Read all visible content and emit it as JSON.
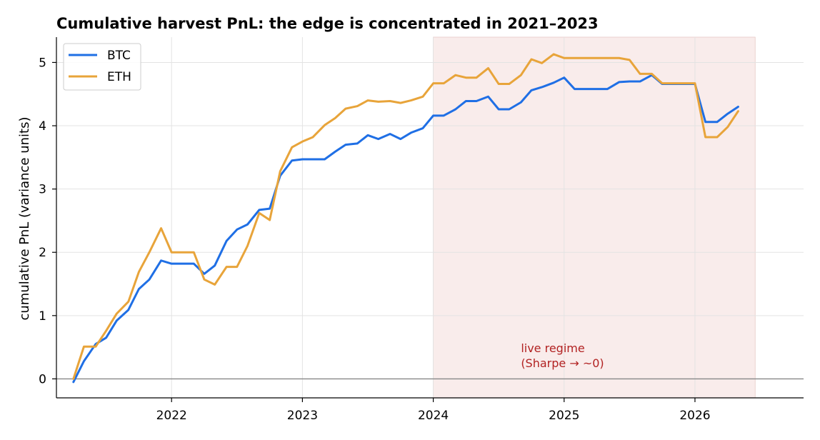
{
  "colors": {
    "btc": "#1f6fe5",
    "eth": "#e8a43a",
    "shade": "#f9eceb",
    "annotation": "#b22222"
  },
  "chart_data": {
    "type": "line",
    "title": "Cumulative harvest PnL: the edge is concentrated in 2021–2023",
    "xlabel": "",
    "ylabel": "cumulative PnL (variance units)",
    "xlim": [
      2021.12,
      2026.83
    ],
    "ylim": [
      -0.3,
      5.4
    ],
    "xticks": [
      2022,
      2023,
      2024,
      2025,
      2026
    ],
    "yticks": [
      0,
      1,
      2,
      3,
      4,
      5
    ],
    "grid": true,
    "legend": "upper-left",
    "shaded_region": {
      "x": [
        2024.0,
        2026.46
      ],
      "label": "live regime\n(Sharpe → ~0)"
    },
    "annotation_lines": [
      "live regime",
      "(Sharpe → ~0)"
    ],
    "annotation_pos": {
      "x": 2024.67,
      "y": 0.42
    },
    "zero_line": 0,
    "series": [
      {
        "name": "BTC",
        "color": "#1f6fe5",
        "x": [
          2021.25,
          2021.33,
          2021.42,
          2021.5,
          2021.58,
          2021.67,
          2021.75,
          2021.83,
          2021.92,
          2022.0,
          2022.08,
          2022.17,
          2022.25,
          2022.33,
          2022.42,
          2022.5,
          2022.58,
          2022.67,
          2022.75,
          2022.83,
          2022.92,
          2023.0,
          2023.08,
          2023.17,
          2023.25,
          2023.33,
          2023.42,
          2023.5,
          2023.58,
          2023.67,
          2023.75,
          2023.83,
          2023.92,
          2024.0,
          2024.08,
          2024.17,
          2024.25,
          2024.33,
          2024.42,
          2024.5,
          2024.58,
          2024.67,
          2024.75,
          2024.83,
          2024.92,
          2025.0,
          2025.08,
          2025.17,
          2025.25,
          2025.33,
          2025.42,
          2025.5,
          2025.58,
          2025.67,
          2025.75,
          2025.83,
          2025.92,
          2026.0,
          2026.08,
          2026.17,
          2026.25,
          2026.33
        ],
        "y": [
          -0.05,
          0.28,
          0.55,
          0.65,
          0.92,
          1.09,
          1.42,
          1.57,
          1.87,
          1.82,
          1.82,
          1.82,
          1.66,
          1.79,
          2.18,
          2.36,
          2.44,
          2.67,
          2.69,
          3.21,
          3.45,
          3.47,
          3.47,
          3.47,
          3.59,
          3.7,
          3.72,
          3.85,
          3.79,
          3.87,
          3.79,
          3.89,
          3.96,
          4.16,
          4.16,
          4.26,
          4.39,
          4.39,
          4.46,
          4.26,
          4.26,
          4.37,
          4.56,
          4.61,
          4.68,
          4.76,
          4.58,
          4.58,
          4.58,
          4.58,
          4.69,
          4.7,
          4.7,
          4.8,
          4.66,
          4.66,
          4.66,
          4.66,
          4.06,
          4.06,
          4.19,
          4.3
        ]
      },
      {
        "name": "ETH",
        "color": "#e8a43a",
        "x": [
          2021.25,
          2021.33,
          2021.42,
          2021.5,
          2021.58,
          2021.67,
          2021.75,
          2021.83,
          2021.92,
          2022.0,
          2022.08,
          2022.17,
          2022.25,
          2022.33,
          2022.42,
          2022.5,
          2022.58,
          2022.67,
          2022.75,
          2022.83,
          2022.92,
          2023.0,
          2023.08,
          2023.17,
          2023.25,
          2023.33,
          2023.42,
          2023.5,
          2023.58,
          2023.67,
          2023.75,
          2023.83,
          2023.92,
          2024.0,
          2024.08,
          2024.17,
          2024.25,
          2024.33,
          2024.42,
          2024.5,
          2024.58,
          2024.67,
          2024.75,
          2024.83,
          2024.92,
          2025.0,
          2025.08,
          2025.17,
          2025.25,
          2025.33,
          2025.42,
          2025.5,
          2025.58,
          2025.67,
          2025.75,
          2025.83,
          2025.92,
          2026.0,
          2026.08,
          2026.17,
          2026.25,
          2026.33
        ],
        "y": [
          0.0,
          0.51,
          0.51,
          0.76,
          1.03,
          1.22,
          1.69,
          2.0,
          2.38,
          2.0,
          2.0,
          2.0,
          1.57,
          1.49,
          1.77,
          1.77,
          2.1,
          2.62,
          2.51,
          3.28,
          3.66,
          3.75,
          3.82,
          4.01,
          4.12,
          4.27,
          4.31,
          4.4,
          4.38,
          4.39,
          4.36,
          4.4,
          4.46,
          4.67,
          4.67,
          4.8,
          4.76,
          4.76,
          4.91,
          4.66,
          4.66,
          4.8,
          5.05,
          4.99,
          5.13,
          5.07,
          5.07,
          5.07,
          5.07,
          5.07,
          5.07,
          5.04,
          4.82,
          4.82,
          4.67,
          4.67,
          4.67,
          4.67,
          3.82,
          3.82,
          3.98,
          4.23
        ]
      }
    ]
  }
}
